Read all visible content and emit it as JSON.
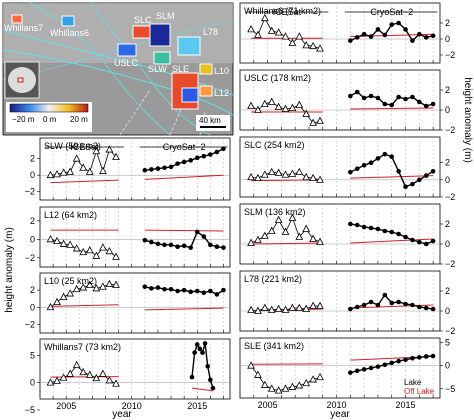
{
  "map": {
    "labels": [
      "Whillans7",
      "Whillans6",
      "SLC",
      "SLM",
      "USLC",
      "SLW",
      "L78",
      "SLE",
      "L10",
      "L12"
    ],
    "colorbar_ticks": [
      "−20 m",
      "0 m",
      "20 m"
    ],
    "scalebar": "40 km"
  },
  "axes": {
    "year_label": "year",
    "ylabel_left": "height anomaly (m)",
    "ylabel_right": "height anomaly (m)",
    "x_ticks": [
      "2005",
      "2010",
      "2015"
    ],
    "y_ticks_1": [
      "−2",
      "0",
      "2"
    ],
    "y_ticks_2": [
      "−5",
      "0",
      "5"
    ]
  },
  "mission_labels": {
    "icesat": "ICESat",
    "cryosat": "CryoSat−2"
  },
  "legend": {
    "lake": "Lake",
    "off_lake": "Off Lake"
  },
  "colors": {
    "off_lake": "#d0202a",
    "lake": "#000000"
  },
  "chart_data": [
    {
      "type": "line",
      "name": "Whillans6 (71 km2)",
      "panel": "right-1",
      "xlim": [
        2003,
        2017.5
      ],
      "ylim": [
        -3,
        4.5
      ],
      "icesat": {
        "x": [
          2003.8,
          2004.3,
          2004.8,
          2005.3,
          2005.8,
          2006.3,
          2006.8,
          2007.3,
          2007.8,
          2008.3,
          2008.8
        ],
        "y": [
          1.2,
          0.5,
          2.6,
          1.0,
          0.8,
          0.3,
          -0.5,
          0.3,
          -0.8,
          -0.9,
          -1.2
        ]
      },
      "cryosat": {
        "x": [
          2011,
          2011.5,
          2012,
          2012.5,
          2013,
          2013.5,
          2014,
          2014.5,
          2015,
          2015.5,
          2016,
          2016.5,
          2017
        ],
        "y": [
          -0.2,
          0.2,
          0.6,
          0.3,
          1.2,
          0.5,
          1.8,
          2.0,
          1.2,
          -0.2,
          0.6,
          0.2,
          0.4
        ]
      },
      "off_lake": {
        "x": [
          2003.8,
          2009,
          2011,
          2017
        ],
        "y": [
          0.1,
          0.1,
          0.3,
          0.6
        ]
      }
    },
    {
      "type": "line",
      "name": "USLC (178 km2)",
      "panel": "right-2",
      "xlim": [
        2003,
        2017.5
      ],
      "ylim": [
        -2,
        4
      ],
      "icesat": {
        "x": [
          2003.8,
          2004.3,
          2004.8,
          2005.3,
          2005.8,
          2006.3,
          2006.8,
          2007.3,
          2007.8,
          2008.3,
          2008.8
        ],
        "y": [
          0.4,
          0.0,
          0.6,
          0.8,
          0.3,
          0.1,
          0.2,
          0.5,
          -0.4,
          -1.3,
          -1.1
        ]
      },
      "cryosat": {
        "x": [
          2011,
          2011.5,
          2012,
          2012.5,
          2013,
          2013.5,
          2014,
          2014.5,
          2015,
          2015.5,
          2016,
          2016.5,
          2017
        ],
        "y": [
          1.4,
          1.8,
          1.2,
          1.4,
          1.2,
          0.6,
          0.5,
          1.3,
          1.1,
          1.3,
          0.8,
          0.4,
          0.6
        ]
      },
      "off_lake": {
        "x": [
          2003.8,
          2009,
          2011,
          2017
        ],
        "y": [
          -0.2,
          -0.2,
          0.1,
          0.2
        ]
      }
    },
    {
      "type": "line",
      "name": "SLW (59 km2)",
      "panel": "left-1",
      "xlim": [
        2003,
        2017.5
      ],
      "ylim": [
        -3,
        4.5
      ],
      "icesat": {
        "x": [
          2003.8,
          2004.3,
          2004.8,
          2005.3,
          2005.8,
          2006.3,
          2006.8,
          2007.3,
          2007.8,
          2008.3,
          2008.8
        ],
        "y": [
          0.0,
          0.1,
          0.3,
          0.4,
          2.0,
          0.9,
          0.4,
          2.9,
          0.5,
          3.1,
          2.2
        ]
      },
      "cryosat": {
        "x": [
          2011,
          2011.5,
          2012,
          2012.5,
          2013,
          2013.5,
          2014,
          2014.5,
          2015,
          2015.5,
          2016,
          2016.5,
          2017
        ],
        "y": [
          0.6,
          0.7,
          0.8,
          0.9,
          1.0,
          1.4,
          1.6,
          1.8,
          2.1,
          2.3,
          2.5,
          2.8,
          3.2
        ]
      },
      "off_lake": {
        "x": [
          2003.8,
          2009,
          2011,
          2017
        ],
        "y": [
          -0.9,
          -0.6,
          -0.5,
          0.0
        ]
      }
    },
    {
      "type": "line",
      "name": "SLC (254 km2)",
      "panel": "right-3",
      "xlim": [
        2003,
        2017.5
      ],
      "ylim": [
        -2,
        5
      ],
      "icesat": {
        "x": [
          2003.8,
          2004.3,
          2004.8,
          2005.3,
          2005.8,
          2006.3,
          2006.8,
          2007.3,
          2007.8,
          2008.3,
          2008.8
        ],
        "y": [
          0.3,
          0.2,
          0.6,
          0.9,
          0.8,
          0.6,
          0.7,
          0.9,
          0.3,
          0.2,
          0.0
        ]
      },
      "cryosat": {
        "x": [
          2011,
          2011.5,
          2012,
          2012.5,
          2013,
          2013.5,
          2014,
          2014.5,
          2015,
          2015.5,
          2016,
          2016.5,
          2017
        ],
        "y": [
          0.9,
          1.3,
          1.7,
          2.0,
          2.5,
          3.0,
          2.7,
          1.0,
          -0.8,
          -0.5,
          0.0,
          0.5,
          1.0
        ]
      },
      "off_lake": {
        "x": [
          2003.8,
          2009,
          2011,
          2017
        ],
        "y": [
          -0.1,
          0.0,
          0.2,
          0.5
        ]
      }
    },
    {
      "type": "line",
      "name": "L12 (64 km2)",
      "panel": "left-2",
      "xlim": [
        2003,
        2017.5
      ],
      "ylim": [
        -3,
        3.5
      ],
      "icesat": {
        "x": [
          2003.8,
          2004.3,
          2004.8,
          2005.3,
          2005.8,
          2006.3,
          2006.8,
          2007.3,
          2007.8,
          2008.3,
          2008.8
        ],
        "y": [
          0.0,
          -0.2,
          -0.5,
          -0.6,
          -1.0,
          -1.4,
          -1.2,
          -1.8,
          -0.9,
          -1.3,
          -1.9
        ]
      },
      "cryosat": {
        "x": [
          2011,
          2011.5,
          2012,
          2012.5,
          2013,
          2013.5,
          2014,
          2014.5,
          2015,
          2015.5,
          2016,
          2016.5,
          2017
        ],
        "y": [
          -0.1,
          -0.3,
          -0.5,
          -0.6,
          -0.6,
          -0.8,
          -0.7,
          -0.9,
          0.8,
          0.3,
          -0.6,
          -0.8,
          -0.9
        ]
      },
      "off_lake": {
        "x": [
          2003.8,
          2009,
          2011,
          2017
        ],
        "y": [
          1.0,
          1.0,
          1.0,
          0.9
        ]
      }
    },
    {
      "type": "line",
      "name": "SLM (136 km2)",
      "panel": "right-4",
      "xlim": [
        2003,
        2017.5
      ],
      "ylim": [
        -2,
        4
      ],
      "icesat": {
        "x": [
          2003.8,
          2004.3,
          2004.8,
          2005.3,
          2005.8,
          2006.3,
          2006.8,
          2007.3,
          2007.8,
          2008.3,
          2008.8
        ],
        "y": [
          0.1,
          0.4,
          0.8,
          1.3,
          2.4,
          1.2,
          2.6,
          0.7,
          1.5,
          0.5,
          0.2
        ]
      },
      "cryosat": {
        "x": [
          2011,
          2011.5,
          2012,
          2012.5,
          2013,
          2013.5,
          2014,
          2014.5,
          2015,
          2015.5,
          2016,
          2016.5,
          2017
        ],
        "y": [
          2.0,
          1.9,
          1.7,
          1.6,
          1.5,
          1.3,
          1.2,
          1.0,
          0.7,
          0.4,
          0.2,
          0.0,
          0.3
        ]
      },
      "off_lake": {
        "x": [
          2003.8,
          2009,
          2011,
          2017
        ],
        "y": [
          0.0,
          0.1,
          0.1,
          0.5
        ]
      }
    },
    {
      "type": "line",
      "name": "L10 (25 km2)",
      "panel": "left-3",
      "xlim": [
        2003,
        2017.5
      ],
      "ylim": [
        -3,
        4
      ],
      "icesat": {
        "x": [
          2003.8,
          2004.3,
          2004.8,
          2005.3,
          2005.8,
          2006.3,
          2006.8,
          2007.3,
          2007.8,
          2008.3,
          2008.8
        ],
        "y": [
          0.0,
          0.6,
          1.2,
          1.6,
          2.1,
          2.3,
          2.6,
          2.2,
          2.4,
          2.7,
          2.6
        ]
      },
      "cryosat": {
        "x": [
          2011,
          2011.5,
          2012,
          2012.5,
          2013,
          2013.5,
          2014,
          2014.5,
          2015,
          2015.5,
          2016,
          2016.5,
          2017
        ],
        "y": [
          2.4,
          2.2,
          2.3,
          2.1,
          2.1,
          1.9,
          2.0,
          1.8,
          1.9,
          1.7,
          1.9,
          1.5,
          2.0
        ]
      },
      "off_lake": {
        "x": [
          2003.8,
          2009,
          2011,
          2017
        ],
        "y": [
          0.1,
          0.3,
          -0.3,
          -0.1
        ]
      }
    },
    {
      "type": "line",
      "name": "L78 (221 km2)",
      "panel": "right-5",
      "xlim": [
        2003,
        2017.5
      ],
      "ylim": [
        -2,
        4
      ],
      "icesat": {
        "x": [
          2003.8,
          2004.3,
          2004.8,
          2005.3,
          2005.8,
          2006.3,
          2006.8,
          2007.3,
          2007.8,
          2008.3,
          2008.8
        ],
        "y": [
          0.1,
          0.0,
          0.3,
          0.1,
          0.2,
          0.1,
          0.3,
          0.3,
          0.2,
          0.5,
          0.5
        ]
      },
      "cryosat": {
        "x": [
          2011,
          2011.5,
          2012,
          2012.5,
          2013,
          2013.5,
          2014,
          2014.5,
          2015,
          2015.5,
          2016,
          2016.5,
          2017
        ],
        "y": [
          0.2,
          0.4,
          0.6,
          0.9,
          0.6,
          1.6,
          0.8,
          0.9,
          0.7,
          0.6,
          0.4,
          0.3,
          0.2
        ]
      },
      "off_lake": {
        "x": [
          2003.8,
          2009,
          2011,
          2017
        ],
        "y": [
          0.0,
          0.2,
          0.3,
          0.6
        ]
      }
    },
    {
      "type": "line",
      "name": "Whillans7 (73 km2)",
      "panel": "left-4",
      "xlim": [
        2003,
        2017.5
      ],
      "ylim": [
        -3,
        8
      ],
      "icesat": {
        "x": [
          2003.8,
          2004.3,
          2004.8,
          2005.3,
          2005.8,
          2006.3,
          2006.8,
          2007.3,
          2007.8,
          2008.3,
          2008.8
        ],
        "y": [
          0.0,
          0.3,
          0.9,
          1.6,
          3.2,
          1.9,
          1.4,
          0.8,
          1.6,
          0.4,
          -0.2
        ]
      },
      "cryosat": {
        "x": [
          2014.6,
          2014.8,
          2015,
          2015.2,
          2015.4,
          2015.6,
          2015.8,
          2016,
          2016.2
        ],
        "y": [
          1.0,
          5.5,
          7.0,
          6.2,
          5.5,
          7.2,
          3.0,
          0.5,
          -1.0
        ]
      },
      "off_lake": {
        "x": [
          2003.8,
          2009,
          2014.6,
          2016.2
        ],
        "y": [
          1.0,
          1.1,
          -1.0,
          -1.5
        ]
      }
    },
    {
      "type": "line",
      "name": "SLE (341 km2)",
      "panel": "right-6",
      "xlim": [
        2003,
        2017.5
      ],
      "ylim": [
        -7,
        6
      ],
      "icesat": {
        "x": [
          2003.8,
          2004.3,
          2004.8,
          2005.3,
          2005.8,
          2006.3,
          2006.8,
          2007.3,
          2007.8,
          2008.3,
          2008.8
        ],
        "y": [
          0.0,
          -2.0,
          -4.2,
          -5.0,
          -5.4,
          -5.0,
          -4.6,
          -4.3,
          -3.8,
          -3.0,
          -2.5
        ]
      },
      "cryosat": {
        "x": [
          2011,
          2011.5,
          2012,
          2012.5,
          2013,
          2013.5,
          2014,
          2014.5,
          2015,
          2015.5,
          2016,
          2016.5,
          2017
        ],
        "y": [
          -1.5,
          -1.1,
          -0.8,
          -0.5,
          -0.2,
          0.2,
          0.6,
          1.0,
          1.3,
          1.6,
          1.8,
          2.0,
          2.1
        ]
      },
      "off_lake": {
        "x": [
          2003.8,
          2009,
          2011,
          2017
        ],
        "y": [
          0.3,
          0.4,
          1.2,
          2.0
        ]
      }
    }
  ]
}
